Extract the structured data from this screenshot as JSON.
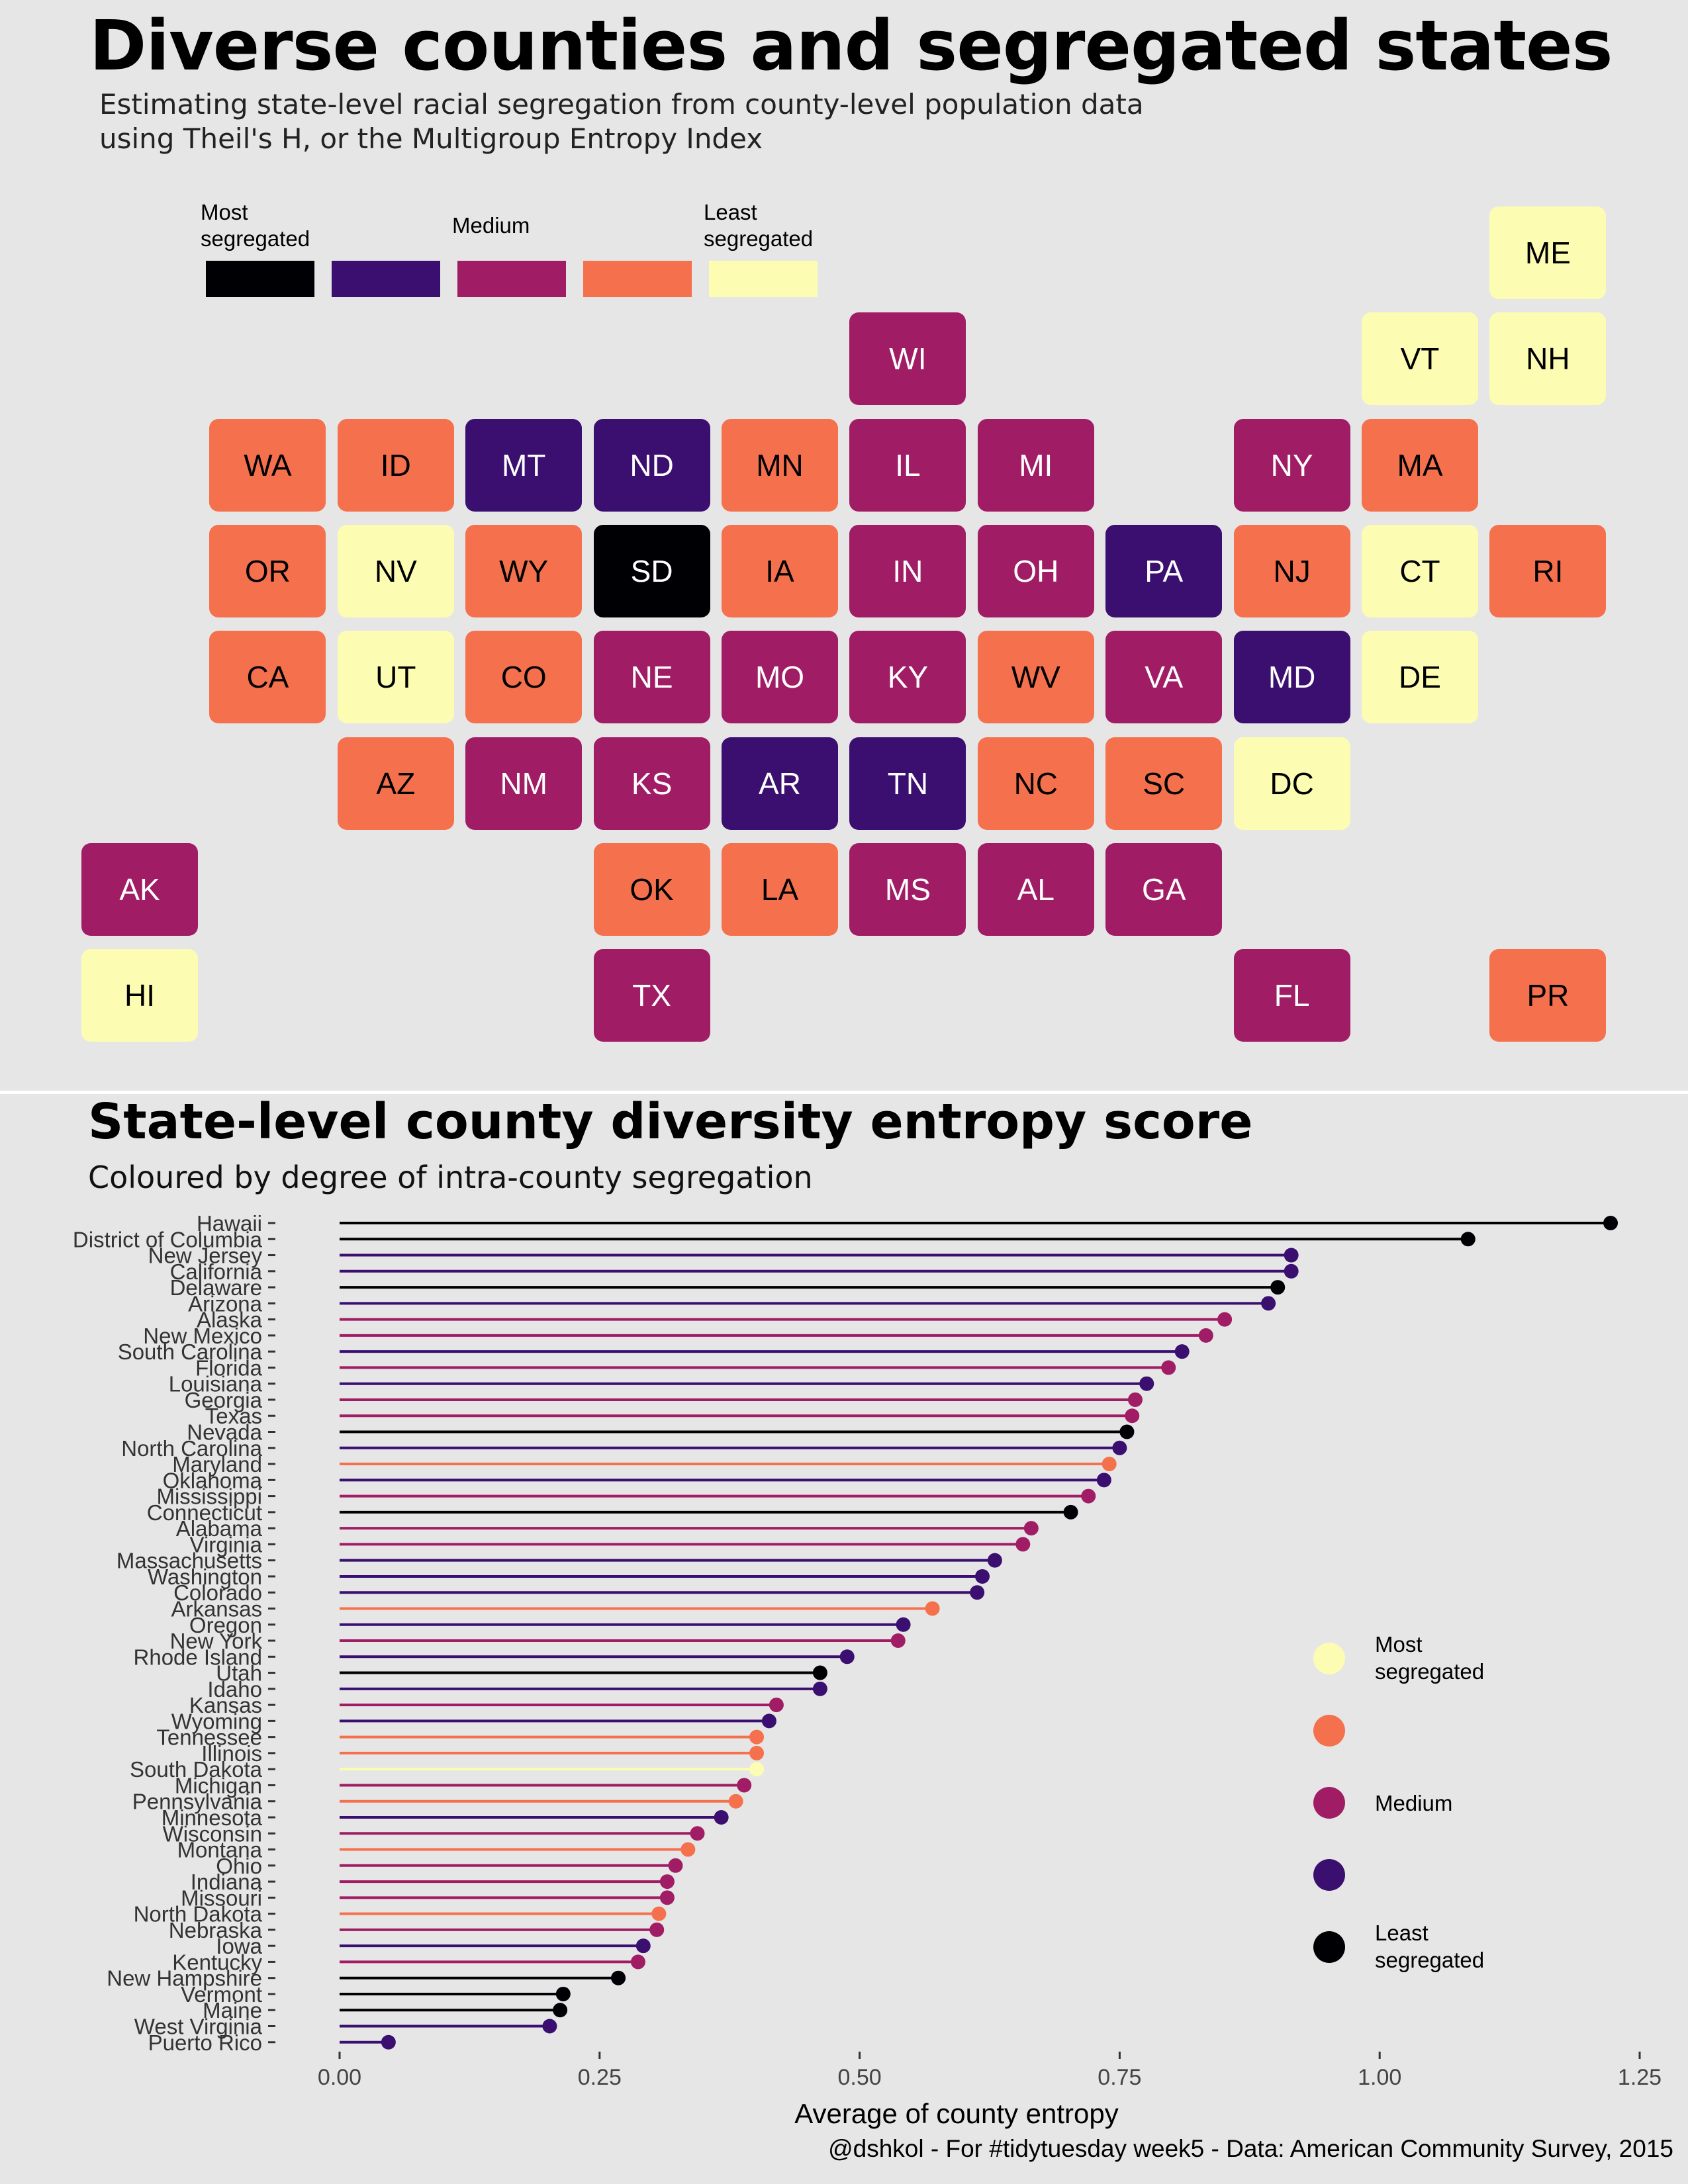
{
  "title": "Diverse counties and segregated states",
  "subtitle_lines": [
    "Estimating state-level racial segregation from county-level population data",
    "using Theil's H, or the Multigroup Entropy Index"
  ],
  "colors": {
    "most": "#000004",
    "dark": "#3b0f70",
    "medium": "#a01d66",
    "orange": "#f5714e",
    "least": "#fcfdb2",
    "background": "#e6e6e6"
  },
  "map_legend": [
    {
      "label": "Most\nsegregated",
      "level": "most"
    },
    {
      "label": "",
      "level": "dark"
    },
    {
      "label": "Medium",
      "level": "medium"
    },
    {
      "label": "",
      "level": "orange"
    },
    {
      "label": "Least\nsegregated",
      "level": "least"
    }
  ],
  "tiles": [
    {
      "abbr": "ME",
      "row": 0,
      "col": 11,
      "level": "least"
    },
    {
      "abbr": "WI",
      "row": 1,
      "col": 6,
      "level": "medium"
    },
    {
      "abbr": "VT",
      "row": 1,
      "col": 10,
      "level": "least"
    },
    {
      "abbr": "NH",
      "row": 1,
      "col": 11,
      "level": "least"
    },
    {
      "abbr": "WA",
      "row": 2,
      "col": 1,
      "level": "orange"
    },
    {
      "abbr": "ID",
      "row": 2,
      "col": 2,
      "level": "orange"
    },
    {
      "abbr": "MT",
      "row": 2,
      "col": 3,
      "level": "dark"
    },
    {
      "abbr": "ND",
      "row": 2,
      "col": 4,
      "level": "dark"
    },
    {
      "abbr": "MN",
      "row": 2,
      "col": 5,
      "level": "orange"
    },
    {
      "abbr": "IL",
      "row": 2,
      "col": 6,
      "level": "medium"
    },
    {
      "abbr": "MI",
      "row": 2,
      "col": 7,
      "level": "medium"
    },
    {
      "abbr": "NY",
      "row": 2,
      "col": 9,
      "level": "medium"
    },
    {
      "abbr": "MA",
      "row": 2,
      "col": 10,
      "level": "orange"
    },
    {
      "abbr": "OR",
      "row": 3,
      "col": 1,
      "level": "orange"
    },
    {
      "abbr": "NV",
      "row": 3,
      "col": 2,
      "level": "least"
    },
    {
      "abbr": "WY",
      "row": 3,
      "col": 3,
      "level": "orange"
    },
    {
      "abbr": "SD",
      "row": 3,
      "col": 4,
      "level": "most"
    },
    {
      "abbr": "IA",
      "row": 3,
      "col": 5,
      "level": "orange"
    },
    {
      "abbr": "IN",
      "row": 3,
      "col": 6,
      "level": "medium"
    },
    {
      "abbr": "OH",
      "row": 3,
      "col": 7,
      "level": "medium"
    },
    {
      "abbr": "PA",
      "row": 3,
      "col": 8,
      "level": "dark"
    },
    {
      "abbr": "NJ",
      "row": 3,
      "col": 9,
      "level": "orange"
    },
    {
      "abbr": "CT",
      "row": 3,
      "col": 10,
      "level": "least"
    },
    {
      "abbr": "RI",
      "row": 3,
      "col": 11,
      "level": "orange"
    },
    {
      "abbr": "CA",
      "row": 4,
      "col": 1,
      "level": "orange"
    },
    {
      "abbr": "UT",
      "row": 4,
      "col": 2,
      "level": "least"
    },
    {
      "abbr": "CO",
      "row": 4,
      "col": 3,
      "level": "orange"
    },
    {
      "abbr": "NE",
      "row": 4,
      "col": 4,
      "level": "medium"
    },
    {
      "abbr": "MO",
      "row": 4,
      "col": 5,
      "level": "medium"
    },
    {
      "abbr": "KY",
      "row": 4,
      "col": 6,
      "level": "medium"
    },
    {
      "abbr": "WV",
      "row": 4,
      "col": 7,
      "level": "orange"
    },
    {
      "abbr": "VA",
      "row": 4,
      "col": 8,
      "level": "medium"
    },
    {
      "abbr": "MD",
      "row": 4,
      "col": 9,
      "level": "dark"
    },
    {
      "abbr": "DE",
      "row": 4,
      "col": 10,
      "level": "least"
    },
    {
      "abbr": "AZ",
      "row": 5,
      "col": 2,
      "level": "orange"
    },
    {
      "abbr": "NM",
      "row": 5,
      "col": 3,
      "level": "medium"
    },
    {
      "abbr": "KS",
      "row": 5,
      "col": 4,
      "level": "medium"
    },
    {
      "abbr": "AR",
      "row": 5,
      "col": 5,
      "level": "dark"
    },
    {
      "abbr": "TN",
      "row": 5,
      "col": 6,
      "level": "dark"
    },
    {
      "abbr": "NC",
      "row": 5,
      "col": 7,
      "level": "orange"
    },
    {
      "abbr": "SC",
      "row": 5,
      "col": 8,
      "level": "orange"
    },
    {
      "abbr": "DC",
      "row": 5,
      "col": 9,
      "level": "least"
    },
    {
      "abbr": "AK",
      "row": 6,
      "col": 0,
      "level": "medium"
    },
    {
      "abbr": "OK",
      "row": 6,
      "col": 4,
      "level": "orange"
    },
    {
      "abbr": "LA",
      "row": 6,
      "col": 5,
      "level": "orange"
    },
    {
      "abbr": "MS",
      "row": 6,
      "col": 6,
      "level": "medium"
    },
    {
      "abbr": "AL",
      "row": 6,
      "col": 7,
      "level": "medium"
    },
    {
      "abbr": "GA",
      "row": 6,
      "col": 8,
      "level": "medium"
    },
    {
      "abbr": "HI",
      "row": 7,
      "col": 0,
      "level": "least"
    },
    {
      "abbr": "TX",
      "row": 7,
      "col": 4,
      "level": "medium"
    },
    {
      "abbr": "FL",
      "row": 7,
      "col": 9,
      "level": "medium"
    },
    {
      "abbr": "PR",
      "row": 7,
      "col": 11,
      "level": "orange"
    }
  ],
  "section2": {
    "title": "State-level county diversity entropy score",
    "subtitle": "Coloured by degree of intra-county segregation"
  },
  "chart_data": {
    "type": "lollipop",
    "xlabel": "Average of county entropy",
    "ylabel": "",
    "xlim": [
      0,
      1.25
    ],
    "x_ticks": [
      "0.00",
      "0.25",
      "0.50",
      "0.75",
      "1.00",
      "1.25"
    ],
    "x_tick_values": [
      0,
      0.25,
      0.5,
      0.75,
      1.0,
      1.25
    ],
    "legend": [
      {
        "label": "Most\nsegregated",
        "level": "least"
      },
      {
        "label": "",
        "level": "orange"
      },
      {
        "label": "Medium",
        "level": "medium"
      },
      {
        "label": "",
        "level": "dark"
      },
      {
        "label": "Least\nsegregated",
        "level": "most"
      }
    ],
    "points": [
      {
        "state": "Hawaii",
        "value": 1.222,
        "level": "most"
      },
      {
        "state": "District of Columbia",
        "value": 1.085,
        "level": "most"
      },
      {
        "state": "New Jersey",
        "value": 0.915,
        "level": "dark"
      },
      {
        "state": "California",
        "value": 0.915,
        "level": "dark"
      },
      {
        "state": "Delaware",
        "value": 0.902,
        "level": "most"
      },
      {
        "state": "Arizona",
        "value": 0.893,
        "level": "dark"
      },
      {
        "state": "Alaska",
        "value": 0.851,
        "level": "medium"
      },
      {
        "state": "New Mexico",
        "value": 0.833,
        "level": "medium"
      },
      {
        "state": "South Carolina",
        "value": 0.81,
        "level": "dark"
      },
      {
        "state": "Florida",
        "value": 0.797,
        "level": "medium"
      },
      {
        "state": "Louisiana",
        "value": 0.776,
        "level": "dark"
      },
      {
        "state": "Georgia",
        "value": 0.765,
        "level": "medium"
      },
      {
        "state": "Texas",
        "value": 0.762,
        "level": "medium"
      },
      {
        "state": "Nevada",
        "value": 0.757,
        "level": "most"
      },
      {
        "state": "North Carolina",
        "value": 0.75,
        "level": "dark"
      },
      {
        "state": "Maryland",
        "value": 0.74,
        "level": "orange"
      },
      {
        "state": "Oklahoma",
        "value": 0.735,
        "level": "dark"
      },
      {
        "state": "Mississippi",
        "value": 0.72,
        "level": "medium"
      },
      {
        "state": "Connecticut",
        "value": 0.703,
        "level": "most"
      },
      {
        "state": "Alabama",
        "value": 0.665,
        "level": "medium"
      },
      {
        "state": "Virginia",
        "value": 0.657,
        "level": "medium"
      },
      {
        "state": "Massachusetts",
        "value": 0.63,
        "level": "dark"
      },
      {
        "state": "Washington",
        "value": 0.618,
        "level": "dark"
      },
      {
        "state": "Colorado",
        "value": 0.613,
        "level": "dark"
      },
      {
        "state": "Arkansas",
        "value": 0.57,
        "level": "orange"
      },
      {
        "state": "Oregon",
        "value": 0.542,
        "level": "dark"
      },
      {
        "state": "New York",
        "value": 0.537,
        "level": "medium"
      },
      {
        "state": "Rhode Island",
        "value": 0.488,
        "level": "dark"
      },
      {
        "state": "Utah",
        "value": 0.462,
        "level": "most"
      },
      {
        "state": "Idaho",
        "value": 0.462,
        "level": "dark"
      },
      {
        "state": "Kansas",
        "value": 0.42,
        "level": "medium"
      },
      {
        "state": "Wyoming",
        "value": 0.413,
        "level": "dark"
      },
      {
        "state": "Tennessee",
        "value": 0.401,
        "level": "orange"
      },
      {
        "state": "Illinois",
        "value": 0.401,
        "level": "orange"
      },
      {
        "state": "South Dakota",
        "value": 0.401,
        "level": "least"
      },
      {
        "state": "Michigan",
        "value": 0.389,
        "level": "medium"
      },
      {
        "state": "Pennsylvania",
        "value": 0.381,
        "level": "orange"
      },
      {
        "state": "Minnesota",
        "value": 0.367,
        "level": "dark"
      },
      {
        "state": "Wisconsin",
        "value": 0.344,
        "level": "medium"
      },
      {
        "state": "Montana",
        "value": 0.335,
        "level": "orange"
      },
      {
        "state": "Ohio",
        "value": 0.323,
        "level": "medium"
      },
      {
        "state": "Indiana",
        "value": 0.315,
        "level": "medium"
      },
      {
        "state": "Missouri",
        "value": 0.315,
        "level": "medium"
      },
      {
        "state": "North Dakota",
        "value": 0.307,
        "level": "orange"
      },
      {
        "state": "Nebraska",
        "value": 0.305,
        "level": "medium"
      },
      {
        "state": "Iowa",
        "value": 0.292,
        "level": "dark"
      },
      {
        "state": "Kentucky",
        "value": 0.287,
        "level": "medium"
      },
      {
        "state": "New Hampshire",
        "value": 0.268,
        "level": "most"
      },
      {
        "state": "Vermont",
        "value": 0.215,
        "level": "most"
      },
      {
        "state": "Maine",
        "value": 0.212,
        "level": "most"
      },
      {
        "state": "West Virginia",
        "value": 0.202,
        "level": "dark"
      },
      {
        "state": "Puerto Rico",
        "value": 0.047,
        "level": "dark"
      }
    ]
  },
  "caption": "@dshkol - For #tidytuesday week5 - Data: American Community Survey, 2015"
}
